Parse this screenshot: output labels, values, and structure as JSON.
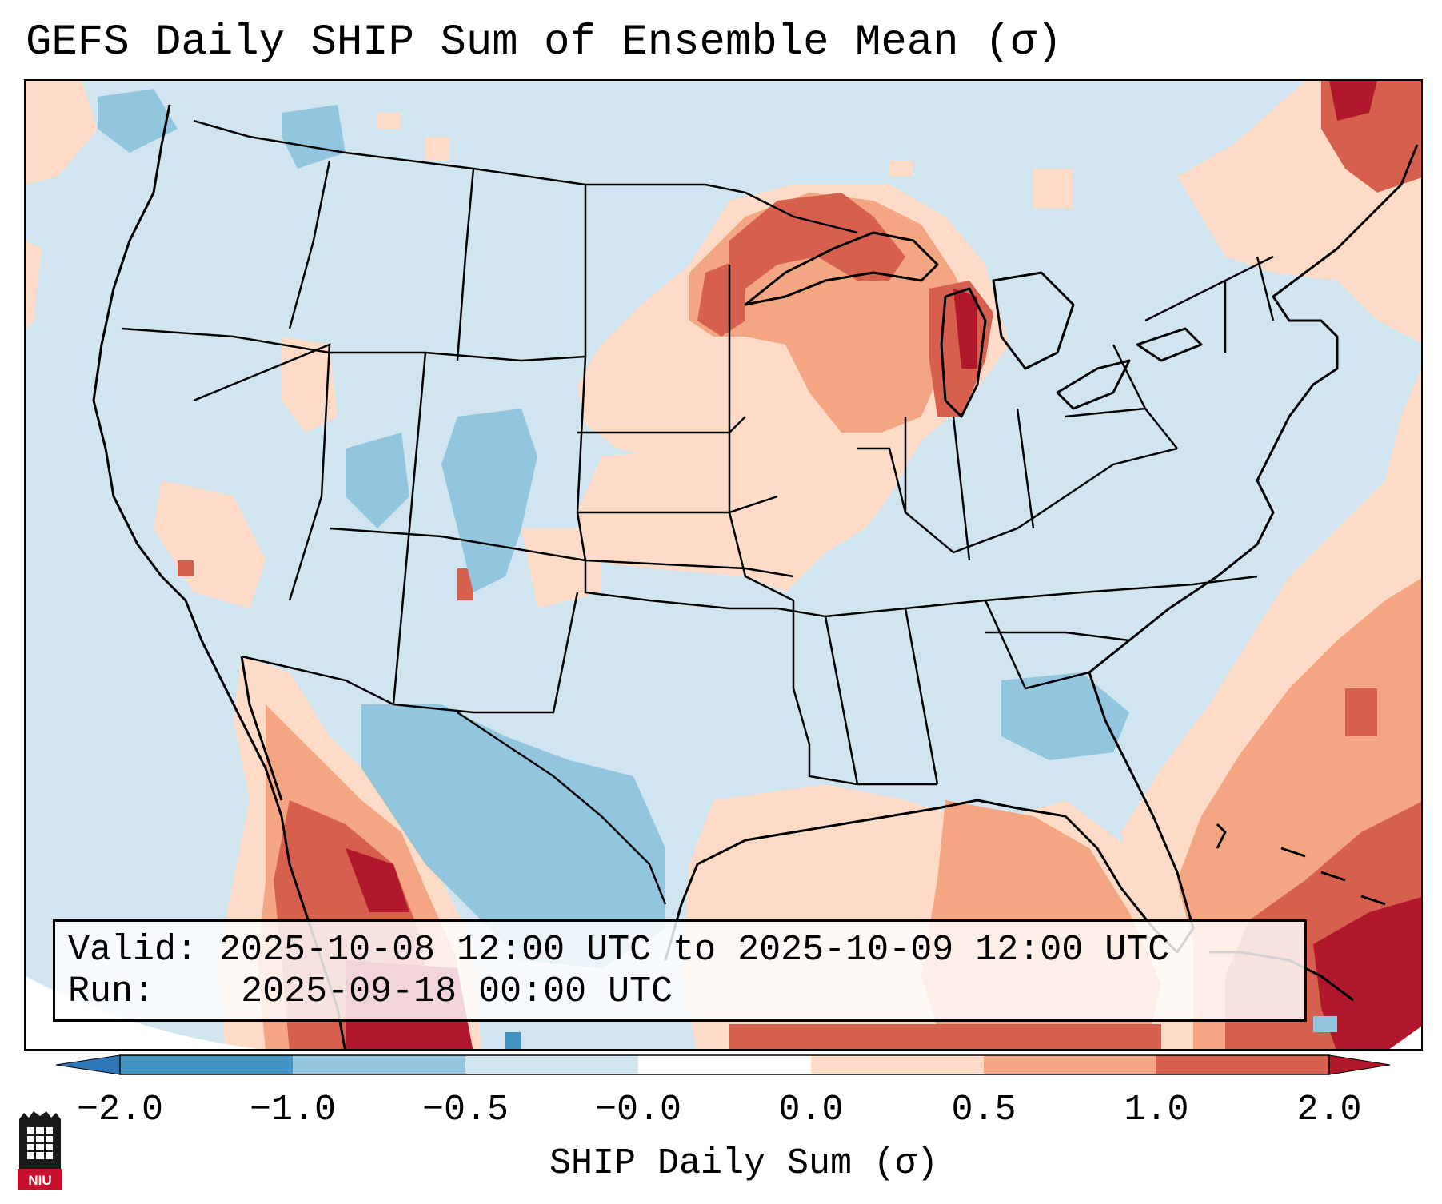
{
  "title": "GEFS Daily SHIP Sum of Ensemble Mean (σ)",
  "info": {
    "valid_label": "Valid:",
    "valid_value": "2025-10-08 12:00 UTC to 2025-10-09 12:00 UTC",
    "run_label": "Run:",
    "run_value": "2025-09-18 00:00 UTC"
  },
  "colorbar": {
    "label": "SHIP Daily Sum (σ)",
    "ticks": [
      "−2.0",
      "−1.0",
      "−0.5",
      "−0.0",
      "0.0",
      "0.5",
      "1.0",
      "2.0"
    ],
    "colors": [
      "#2e78b8",
      "#4393c3",
      "#92c5de",
      "#d1e5f0",
      "#ffffff",
      "#fddbc7",
      "#f4a582",
      "#d6604d",
      "#b2182b"
    ]
  },
  "logo": {
    "text": "NIU"
  },
  "map": {
    "background_color": "#d1e5f0",
    "anomalies": [
      {
        "region": "Pacific Northwest coast",
        "category": "0.0 to 0.5"
      },
      {
        "region": "Upper Great Lakes / Michigan",
        "category": "1.0 to 2.0"
      },
      {
        "region": "Upper Midwest",
        "category": "0.5 to 1.0"
      },
      {
        "region": "Southern Rockies",
        "category": "-1.0 to -0.5"
      },
      {
        "region": "Southern Texas / northern Mexico",
        "category": "-1.0 to -0.5"
      },
      {
        "region": "Western Mexico coast",
        "category": "1.0 to 2.0"
      },
      {
        "region": "Gulf of Mexico",
        "category": "0.0 to 1.0"
      },
      {
        "region": "Western Atlantic",
        "category": "0.5 to 1.0"
      },
      {
        "region": "Bahamas / Caribbean",
        "category": "1.0 to 2.0"
      },
      {
        "region": "Quebec / Maritimes",
        "category": "1.0 to 2.0"
      },
      {
        "region": "Georgia",
        "category": "-1.0 to -0.5"
      }
    ]
  }
}
